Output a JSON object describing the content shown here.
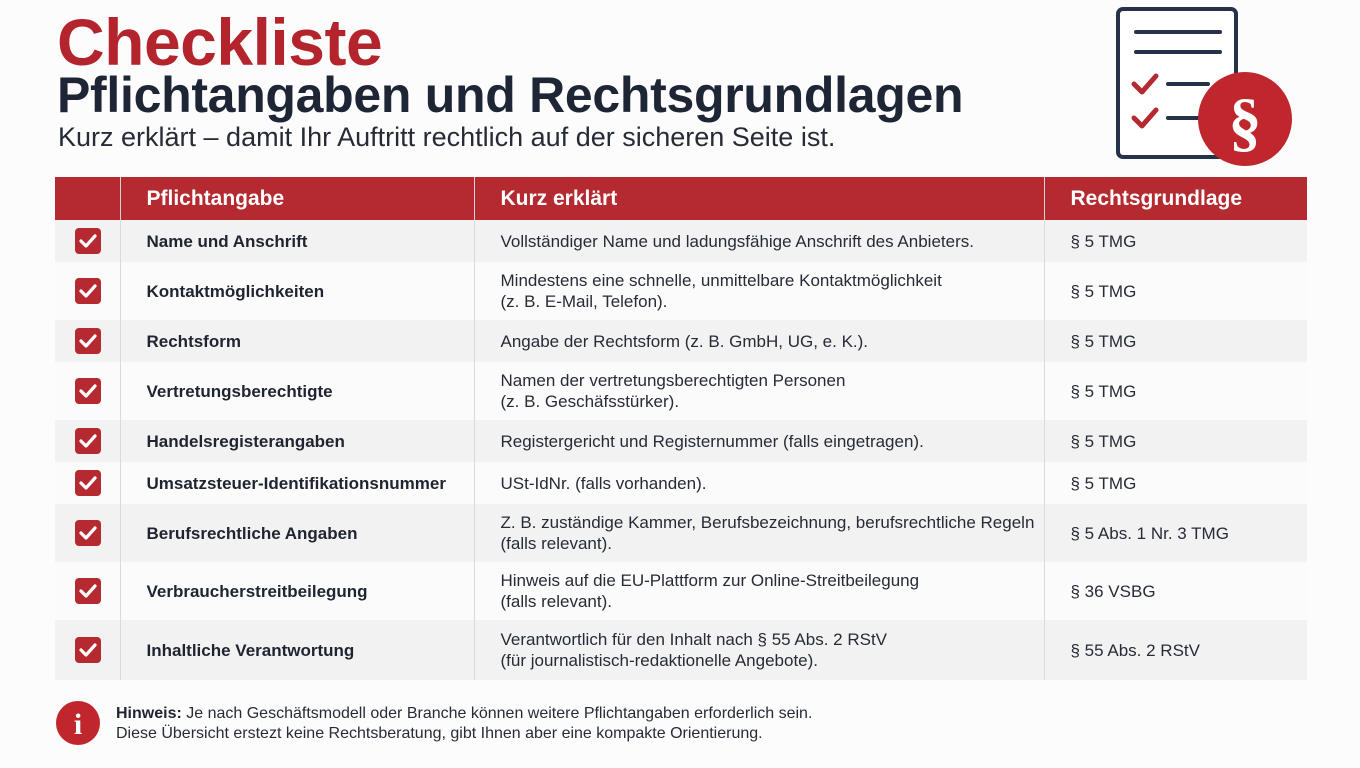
{
  "header": {
    "title_line1": "Checkliste",
    "title_line2": "Pflichtangaben und Rechtsgrundlagen",
    "subtitle": "Kurz erklärt – damit Ihr Auftritt rechtlich auf der sicheren Seite ist.",
    "paragraph_symbol": "§",
    "icons": [
      "checklist-icon",
      "paragraph-icon"
    ]
  },
  "table": {
    "columns": [
      "Pflichtangabe",
      "Kurz erklärt",
      "Rechtsgrundlage"
    ],
    "rows": [
      {
        "checked": true,
        "item": "Name und Anschrift",
        "explanation": "Vollständiger Name und ladungsfähige Anschrift des Anbieters.",
        "explanation2": "",
        "basis": "§ 5 TMG"
      },
      {
        "checked": true,
        "item": "Kontaktmöglichkeiten",
        "explanation": "Mindestens eine schnelle, unmittelbare Kontaktmöglichkeit",
        "explanation2": "(z. B. E-Mail, Telefon).",
        "basis": "§ 5 TMG"
      },
      {
        "checked": true,
        "item": "Rechtsform",
        "explanation": "Angabe der Rechtsform (z. B. GmbH, UG, e. K.).",
        "explanation2": "",
        "basis": "§ 5 TMG"
      },
      {
        "checked": true,
        "item": "Vertretungsberechtigte",
        "explanation": "Namen der vertretungsberechtigten Personen",
        "explanation2": "(z. B. Geschäfsstürker).",
        "basis": "§ 5 TMG"
      },
      {
        "checked": true,
        "item": "Handelsregisterangaben",
        "explanation": "Registergericht und Registernummer (falls eingetragen).",
        "explanation2": "",
        "basis": "§ 5 TMG"
      },
      {
        "checked": true,
        "item": "Umsatzsteuer-Identifikationsnummer",
        "explanation": "USt-IdNr. (falls vorhanden).",
        "explanation2": "",
        "basis": "§ 5 TMG"
      },
      {
        "checked": true,
        "item": "Berufsrechtliche Angaben",
        "explanation": "Z. B. zuständige Kammer, Berufsbezeichnung, berufsrechtliche Regeln",
        "explanation2": "(falls relevant).",
        "basis": "§ 5 Abs. 1 Nr. 3 TMG"
      },
      {
        "checked": true,
        "item": "Verbraucherstreitbeilegung",
        "explanation": "Hinweis auf die EU-Plattform zur Online-Streitbeilegung",
        "explanation2": "(falls relevant).",
        "basis": "§ 36 VSBG"
      },
      {
        "checked": true,
        "item": "Inhaltliche Verantwortung",
        "explanation": "Verantwortlich für den Inhalt nach § 55 Abs. 2 RStV",
        "explanation2": "(für journalistisch-redaktionelle Angebote).",
        "basis": "§ 55 Abs. 2 RStV"
      }
    ]
  },
  "note": {
    "icon": "info-icon",
    "icon_glyph": "i",
    "label": "Hinweis:",
    "line1": "Je nach Geschäftsmodell oder Branche können weitere Pflichtangaben erforderlich sein.",
    "line2": "Diese Übersicht erstezt keine Rechtsberatung, gibt Ihnen aber eine kompakte Orientierung."
  },
  "colors": {
    "accent_red": "#b52a30",
    "title_red": "#b3242c",
    "dark_text": "#1e2535",
    "row_alt": "#f2f2f2"
  }
}
